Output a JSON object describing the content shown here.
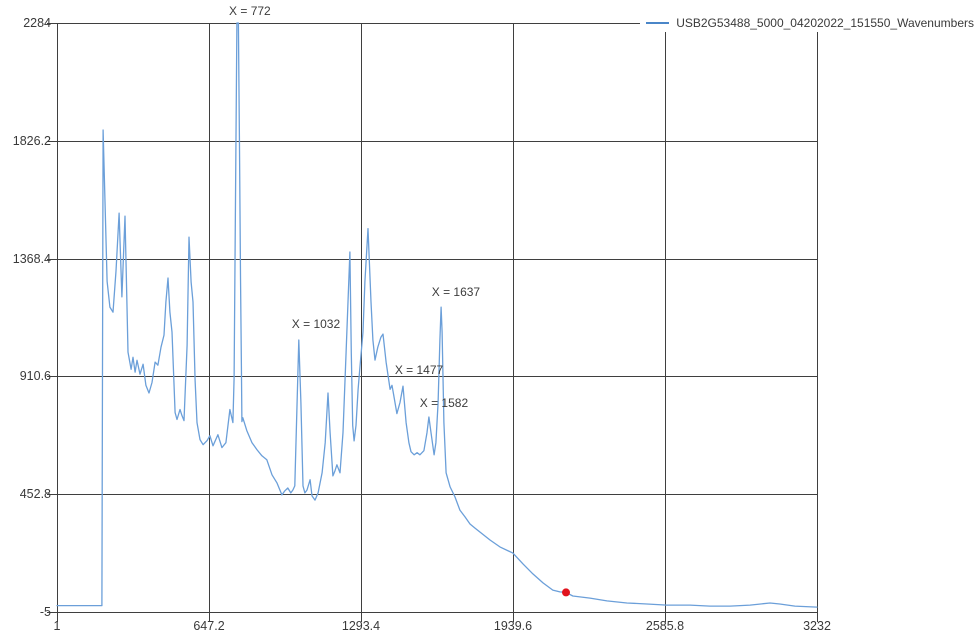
{
  "chart_data": {
    "type": "line",
    "title": "",
    "xlabel": "",
    "ylabel": "",
    "grid": true,
    "xlim": [
      1,
      3232
    ],
    "ylim": [
      -5,
      2284
    ],
    "x_ticks": {
      "values": [
        1,
        647.2,
        1293.4,
        1939.6,
        2585.8,
        3232
      ],
      "labels": [
        "1",
        "647.2",
        "1293.4",
        "1939.6",
        "2585.8",
        "3232"
      ]
    },
    "y_ticks": {
      "values": [
        2284,
        1826.2,
        1368.4,
        910.6,
        452.8,
        -5
      ],
      "labels": [
        "2284",
        "1826.2",
        "1368.4",
        "910.6",
        "452.8",
        "-5"
      ]
    },
    "legend": {
      "position": "top-right",
      "entries": [
        {
          "label": "USB2G53488_5000_04202022_151550_Wavenumbers",
          "color": "#4a86c8"
        }
      ]
    },
    "annotations": [
      {
        "text": "X = 772",
        "x": 821,
        "y": 2330
      },
      {
        "text": "X = 1032",
        "x": 1102,
        "y": 1114
      },
      {
        "text": "X = 1477",
        "x": 1540,
        "y": 935
      },
      {
        "text": "X = 1582",
        "x": 1646,
        "y": 807
      },
      {
        "text": "X = 1637",
        "x": 1697,
        "y": 1239
      }
    ],
    "marker": {
      "x": 2165,
      "y": 71,
      "color": "#e1131d"
    },
    "colors": {
      "grid": "#3f3f3f",
      "text": "#3a3a3a",
      "background": "#ffffff",
      "series": "#6b9fd9"
    },
    "series": [
      {
        "name": "USB2G53488_5000_04202022_151550_Wavenumbers",
        "color": "#6b9fd9",
        "points": [
          [
            1,
            20
          ],
          [
            99,
            20
          ],
          [
            192,
            20
          ],
          [
            197,
            1868
          ],
          [
            205,
            1590
          ],
          [
            214,
            1280
          ],
          [
            226,
            1180
          ],
          [
            239,
            1160
          ],
          [
            252,
            1320
          ],
          [
            265,
            1545
          ],
          [
            277,
            1220
          ],
          [
            290,
            1533
          ],
          [
            303,
            1005
          ],
          [
            316,
            938
          ],
          [
            324,
            985
          ],
          [
            333,
            927
          ],
          [
            341,
            973
          ],
          [
            354,
            919
          ],
          [
            367,
            958
          ],
          [
            379,
            876
          ],
          [
            392,
            846
          ],
          [
            405,
            887
          ],
          [
            418,
            966
          ],
          [
            430,
            954
          ],
          [
            443,
            1024
          ],
          [
            456,
            1071
          ],
          [
            464,
            1200
          ],
          [
            473,
            1293
          ],
          [
            481,
            1161
          ],
          [
            490,
            1083
          ],
          [
            503,
            770
          ],
          [
            511,
            743
          ],
          [
            524,
            782
          ],
          [
            532,
            759
          ],
          [
            541,
            739
          ],
          [
            554,
            1032
          ],
          [
            562,
            1452
          ],
          [
            571,
            1278
          ],
          [
            579,
            1200
          ],
          [
            588,
            895
          ],
          [
            596,
            731
          ],
          [
            609,
            665
          ],
          [
            622,
            645
          ],
          [
            639,
            661
          ],
          [
            651,
            680
          ],
          [
            664,
            641
          ],
          [
            685,
            684
          ],
          [
            702,
            634
          ],
          [
            719,
            653
          ],
          [
            736,
            782
          ],
          [
            749,
            731
          ],
          [
            754,
            905
          ],
          [
            760,
            1600
          ],
          [
            766,
            2284
          ],
          [
            772,
            2284
          ],
          [
            777,
            1800
          ],
          [
            781,
            1300
          ],
          [
            785,
            950
          ],
          [
            787,
            735
          ],
          [
            791,
            750
          ],
          [
            808,
            700
          ],
          [
            830,
            653
          ],
          [
            851,
            626
          ],
          [
            872,
            602
          ],
          [
            893,
            587
          ],
          [
            915,
            528
          ],
          [
            936,
            497
          ],
          [
            957,
            450
          ],
          [
            970,
            466
          ],
          [
            982,
            477
          ],
          [
            995,
            458
          ],
          [
            1004,
            469
          ],
          [
            1012,
            485
          ],
          [
            1029,
            1052
          ],
          [
            1038,
            810
          ],
          [
            1047,
            485
          ],
          [
            1055,
            458
          ],
          [
            1064,
            469
          ],
          [
            1077,
            509
          ],
          [
            1085,
            446
          ],
          [
            1098,
            430
          ],
          [
            1111,
            458
          ],
          [
            1128,
            536
          ],
          [
            1141,
            653
          ],
          [
            1153,
            846
          ],
          [
            1162,
            692
          ],
          [
            1174,
            524
          ],
          [
            1183,
            544
          ],
          [
            1191,
            567
          ],
          [
            1204,
            536
          ],
          [
            1217,
            692
          ],
          [
            1230,
            1005
          ],
          [
            1238,
            1200
          ],
          [
            1246,
            1394
          ],
          [
            1252,
            1000
          ],
          [
            1258,
            720
          ],
          [
            1264,
            660
          ],
          [
            1272,
            720
          ],
          [
            1281,
            860
          ],
          [
            1289,
            950
          ],
          [
            1302,
            1083
          ],
          [
            1310,
            1278
          ],
          [
            1323,
            1485
          ],
          [
            1336,
            1200
          ],
          [
            1344,
            1052
          ],
          [
            1353,
            974
          ],
          [
            1365,
            1024
          ],
          [
            1378,
            1063
          ],
          [
            1387,
            1075
          ],
          [
            1400,
            966
          ],
          [
            1417,
            860
          ],
          [
            1425,
            876
          ],
          [
            1434,
            829
          ],
          [
            1446,
            766
          ],
          [
            1459,
            809
          ],
          [
            1472,
            873
          ],
          [
            1485,
            731
          ],
          [
            1497,
            653
          ],
          [
            1506,
            618
          ],
          [
            1519,
            606
          ],
          [
            1532,
            614
          ],
          [
            1544,
            606
          ],
          [
            1561,
            622
          ],
          [
            1574,
            692
          ],
          [
            1582,
            753
          ],
          [
            1591,
            692
          ],
          [
            1604,
            606
          ],
          [
            1612,
            653
          ],
          [
            1621,
            809
          ],
          [
            1629,
            1052
          ],
          [
            1634,
            1180
          ],
          [
            1638,
            1083
          ],
          [
            1646,
            731
          ],
          [
            1655,
            536
          ],
          [
            1672,
            481
          ],
          [
            1693,
            442
          ],
          [
            1714,
            391
          ],
          [
            1736,
            364
          ],
          [
            1757,
            337
          ],
          [
            1778,
            321
          ],
          [
            1799,
            306
          ],
          [
            1842,
            275
          ],
          [
            1884,
            248
          ],
          [
            1939,
            224
          ],
          [
            1982,
            182
          ],
          [
            2024,
            143
          ],
          [
            2067,
            108
          ],
          [
            2109,
            80
          ],
          [
            2139,
            73
          ],
          [
            2165,
            71
          ],
          [
            2194,
            57
          ],
          [
            2267,
            49
          ],
          [
            2339,
            38
          ],
          [
            2424,
            30
          ],
          [
            2509,
            26
          ],
          [
            2594,
            22
          ],
          [
            2692,
            22
          ],
          [
            2777,
            18
          ],
          [
            2862,
            18
          ],
          [
            2947,
            22
          ],
          [
            3032,
            30
          ],
          [
            3074,
            26
          ],
          [
            3138,
            18
          ],
          [
            3232,
            14
          ]
        ]
      }
    ]
  }
}
